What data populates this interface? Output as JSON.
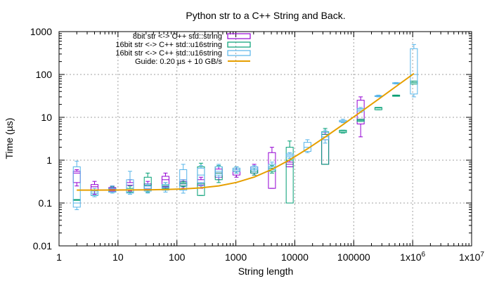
{
  "chart_data": {
    "type": "boxplot",
    "title": "Python str to a C++ String and Back.",
    "xlabel": "String length",
    "ylabel": "Time (µs)",
    "xscale": "log",
    "yscale": "log",
    "xlim": [
      1,
      10000000
    ],
    "ylim": [
      0.01,
      1000
    ],
    "grid": true,
    "legend_position": "top-right",
    "x_ticks": [
      {
        "value": 1,
        "label": "1"
      },
      {
        "value": 10,
        "label": "10"
      },
      {
        "value": 100,
        "label": "100"
      },
      {
        "value": 1000,
        "label": "1000"
      },
      {
        "value": 10000,
        "label": "10000"
      },
      {
        "value": 100000,
        "label": "100000"
      },
      {
        "value": 1000000,
        "label": "1x10",
        "sup": "6"
      },
      {
        "value": 10000000,
        "label": "1x10",
        "sup": "7"
      }
    ],
    "y_ticks": [
      {
        "value": 0.01,
        "label": "0.01"
      },
      {
        "value": 0.1,
        "label": "0.1"
      },
      {
        "value": 1,
        "label": "1"
      },
      {
        "value": 10,
        "label": "10"
      },
      {
        "value": 100,
        "label": "100"
      },
      {
        "value": 1000,
        "label": "1000"
      }
    ],
    "series": [
      {
        "name": "8bit str <-> C++ std::string",
        "color": "#9400d3",
        "boxes": [
          {
            "x": 2,
            "min": 0.25,
            "q1": 0.3,
            "median": 0.5,
            "q3": 0.55,
            "max": 0.6
          },
          {
            "x": 4,
            "min": 0.16,
            "q1": 0.2,
            "median": 0.24,
            "q3": 0.27,
            "max": 0.32
          },
          {
            "x": 8,
            "min": 0.19,
            "q1": 0.19,
            "median": 0.21,
            "q3": 0.23,
            "max": 0.25
          },
          {
            "x": 16,
            "min": 0.19,
            "q1": 0.2,
            "median": 0.26,
            "q3": 0.3,
            "max": 0.35
          },
          {
            "x": 32,
            "min": 0.2,
            "q1": 0.21,
            "median": 0.25,
            "q3": 0.28,
            "max": 0.32
          },
          {
            "x": 64,
            "min": 0.22,
            "q1": 0.24,
            "median": 0.35,
            "q3": 0.42,
            "max": 0.5
          },
          {
            "x": 128,
            "min": 0.22,
            "q1": 0.25,
            "median": 0.28,
            "q3": 0.32,
            "max": 0.35
          },
          {
            "x": 256,
            "min": 0.22,
            "q1": 0.26,
            "median": 0.3,
            "q3": 0.35,
            "max": 0.4
          },
          {
            "x": 512,
            "min": 0.35,
            "q1": 0.4,
            "median": 0.5,
            "q3": 0.62,
            "max": 0.7
          },
          {
            "x": 1024,
            "min": 0.4,
            "q1": 0.45,
            "median": 0.55,
            "q3": 0.6,
            "max": 0.65
          },
          {
            "x": 2048,
            "min": 0.45,
            "q1": 0.5,
            "median": 0.6,
            "q3": 0.7,
            "max": 0.8
          },
          {
            "x": 4096,
            "min": 0.22,
            "q1": 0.22,
            "median": 0.6,
            "q3": 1.5,
            "max": 2.0
          },
          {
            "x": 8192,
            "min": 0.7,
            "q1": 0.7,
            "median": 0.8,
            "q3": 0.9,
            "max": 1.0
          },
          {
            "x": 32768,
            "min": 0.8,
            "q1": 0.8,
            "median": 3.0,
            "q3": 4.0,
            "max": 4.5
          },
          {
            "x": 131072,
            "min": 3.5,
            "q1": 7.0,
            "median": 9.0,
            "q3": 25.0,
            "max": 30.0
          }
        ]
      },
      {
        "name": "16bit str <-> C++ std::u16string",
        "color": "#009e73",
        "boxes": [
          {
            "x": 2,
            "min": 0.12,
            "q1": 0.12,
            "median": 0.12,
            "q3": 0.12,
            "max": 0.12
          },
          {
            "x": 4,
            "min": 0.15,
            "q1": 0.15,
            "median": 0.17,
            "q3": 0.19,
            "max": 0.2
          },
          {
            "x": 8,
            "min": 0.18,
            "q1": 0.18,
            "median": 0.2,
            "q3": 0.22,
            "max": 0.24
          },
          {
            "x": 16,
            "min": 0.17,
            "q1": 0.18,
            "median": 0.2,
            "q3": 0.22,
            "max": 0.25
          },
          {
            "x": 32,
            "min": 0.18,
            "q1": 0.2,
            "median": 0.26,
            "q3": 0.4,
            "max": 0.5
          },
          {
            "x": 64,
            "min": 0.2,
            "q1": 0.22,
            "median": 0.25,
            "q3": 0.27,
            "max": 0.3
          },
          {
            "x": 128,
            "min": 0.24,
            "q1": 0.25,
            "median": 0.28,
            "q3": 0.3,
            "max": 0.32
          },
          {
            "x": 256,
            "min": 0.15,
            "q1": 0.15,
            "median": 0.28,
            "q3": 0.7,
            "max": 0.85
          },
          {
            "x": 512,
            "min": 0.3,
            "q1": 0.35,
            "median": 0.5,
            "q3": 0.7,
            "max": 0.75
          },
          {
            "x": 1024,
            "min": 0.5,
            "q1": 0.55,
            "median": 0.6,
            "q3": 0.65,
            "max": 0.7
          },
          {
            "x": 2048,
            "min": 0.45,
            "q1": 0.5,
            "median": 0.55,
            "q3": 0.6,
            "max": 0.65
          },
          {
            "x": 4096,
            "min": 0.5,
            "q1": 0.55,
            "median": 0.65,
            "q3": 0.7,
            "max": 0.75
          },
          {
            "x": 8192,
            "min": 0.1,
            "q1": 0.1,
            "median": 1.0,
            "q3": 2.0,
            "max": 2.8
          },
          {
            "x": 32768,
            "min": 0.8,
            "q1": 0.8,
            "median": 4.0,
            "q3": 4.6,
            "max": 5.5
          },
          {
            "x": 65536,
            "min": 4.3,
            "q1": 4.4,
            "median": 4.7,
            "q3": 5.0,
            "max": 5.0
          },
          {
            "x": 131072,
            "min": 8.0,
            "q1": 8.0,
            "median": 8.5,
            "q3": 9.0,
            "max": 9.0
          },
          {
            "x": 262144,
            "min": 15.0,
            "q1": 15.0,
            "median": 16.5,
            "q3": 17.0,
            "max": 17.0
          },
          {
            "x": 524288,
            "min": 31.0,
            "q1": 31.0,
            "median": 32.0,
            "q3": 33.0,
            "max": 33.0
          },
          {
            "x": 1048576,
            "min": 60.0,
            "q1": 60.0,
            "median": 65.0,
            "q3": 70.0,
            "max": 70.0
          }
        ]
      },
      {
        "name": "16bit str <-> C++ std::u16string",
        "color": "#56b4e9",
        "boxes": [
          {
            "x": 2,
            "min": 0.07,
            "q1": 0.08,
            "median": 0.1,
            "q3": 0.7,
            "max": 0.95
          },
          {
            "x": 4,
            "min": 0.14,
            "q1": 0.15,
            "median": 0.17,
            "q3": 0.19,
            "max": 0.22
          },
          {
            "x": 8,
            "min": 0.17,
            "q1": 0.18,
            "median": 0.2,
            "q3": 0.22,
            "max": 0.25
          },
          {
            "x": 16,
            "min": 0.16,
            "q1": 0.17,
            "median": 0.2,
            "q3": 0.35,
            "max": 0.55
          },
          {
            "x": 32,
            "min": 0.17,
            "q1": 0.19,
            "median": 0.22,
            "q3": 0.25,
            "max": 0.28
          },
          {
            "x": 64,
            "min": 0.18,
            "q1": 0.2,
            "median": 0.23,
            "q3": 0.27,
            "max": 0.3
          },
          {
            "x": 128,
            "min": 0.17,
            "q1": 0.2,
            "median": 0.35,
            "q3": 0.6,
            "max": 0.8
          },
          {
            "x": 256,
            "min": 0.25,
            "q1": 0.3,
            "median": 0.45,
            "q3": 0.65,
            "max": 0.75
          },
          {
            "x": 512,
            "min": 0.4,
            "q1": 0.45,
            "median": 0.55,
            "q3": 0.7,
            "max": 0.8
          },
          {
            "x": 1024,
            "min": 0.5,
            "q1": 0.55,
            "median": 0.6,
            "q3": 0.65,
            "max": 0.7
          },
          {
            "x": 2048,
            "min": 0.55,
            "q1": 0.6,
            "median": 0.65,
            "q3": 0.7,
            "max": 0.75
          },
          {
            "x": 4096,
            "min": 0.6,
            "q1": 0.6,
            "median": 0.7,
            "q3": 0.8,
            "max": 0.9
          },
          {
            "x": 8192,
            "min": 1.1,
            "q1": 1.2,
            "median": 1.3,
            "q3": 1.4,
            "max": 1.5
          },
          {
            "x": 16384,
            "min": 1.5,
            "q1": 1.6,
            "median": 2.0,
            "q3": 2.6,
            "max": 3.0
          },
          {
            "x": 32768,
            "min": 2.5,
            "q1": 3.0,
            "median": 3.5,
            "q3": 4.5,
            "max": 5.0
          },
          {
            "x": 65536,
            "min": 7.5,
            "q1": 7.8,
            "median": 8.0,
            "q3": 8.5,
            "max": 9.0
          },
          {
            "x": 131072,
            "min": 13.0,
            "q1": 14.0,
            "median": 15.0,
            "q3": 16.0,
            "max": 17.0
          },
          {
            "x": 262144,
            "min": 30.0,
            "q1": 30.5,
            "median": 31.0,
            "q3": 32.0,
            "max": 33.0
          },
          {
            "x": 524288,
            "min": 60.0,
            "q1": 61.0,
            "median": 62.0,
            "q3": 64.0,
            "max": 65.0
          },
          {
            "x": 1048576,
            "min": 30.0,
            "q1": 35.0,
            "median": 100.0,
            "q3": 400.0,
            "max": 500.0
          }
        ]
      },
      {
        "name": "Guide: 0.20 µs + 10 GB/s",
        "color": "#e69f00",
        "type": "line",
        "formula": "0.20 + x/10000",
        "x": [
          2,
          4,
          8,
          16,
          32,
          64,
          128,
          256,
          512,
          1024,
          2048,
          4096,
          8192,
          16384,
          32768,
          65536,
          131072,
          262144,
          524288,
          1048576
        ]
      }
    ]
  }
}
